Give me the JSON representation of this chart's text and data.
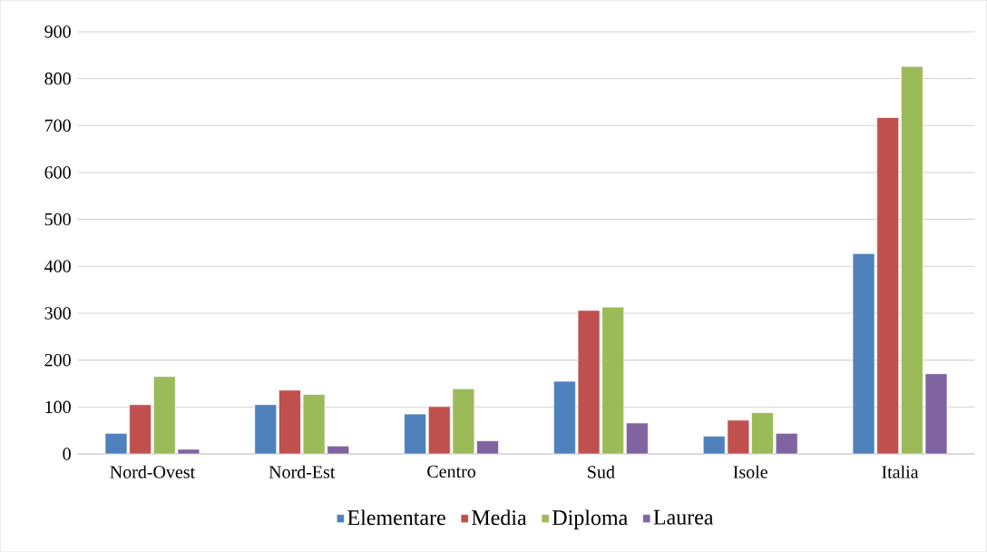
{
  "chart_data": {
    "type": "bar",
    "categories": [
      "Nord-Ovest",
      "Nord-Est",
      "Centro",
      "Sud",
      "Isole",
      "Italia"
    ],
    "series": [
      {
        "name": "Elementare",
        "color": "#4f81bd",
        "values": [
          44,
          105,
          85,
          155,
          38,
          427
        ]
      },
      {
        "name": "Media",
        "color": "#c0504d",
        "values": [
          105,
          136,
          101,
          306,
          72,
          717
        ]
      },
      {
        "name": "Diploma",
        "color": "#9bbb59",
        "values": [
          165,
          127,
          139,
          313,
          88,
          826
        ]
      },
      {
        "name": "Laurea",
        "color": "#8064a2",
        "values": [
          10,
          17,
          28,
          66,
          44,
          171
        ]
      }
    ],
    "ylim": [
      0,
      900
    ],
    "yticks": [
      0,
      100,
      200,
      300,
      400,
      500,
      600,
      700,
      800,
      900
    ],
    "grid": "y",
    "legend": "bottom"
  }
}
